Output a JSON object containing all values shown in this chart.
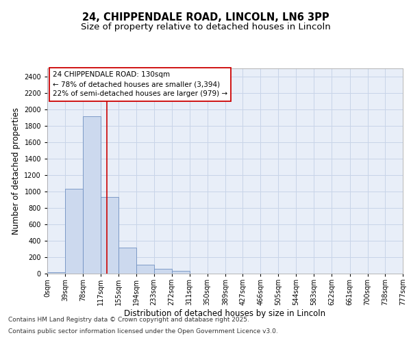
{
  "title_line1": "24, CHIPPENDALE ROAD, LINCOLN, LN6 3PP",
  "title_line2": "Size of property relative to detached houses in Lincoln",
  "xlabel": "Distribution of detached houses by size in Lincoln",
  "ylabel": "Number of detached properties",
  "bar_edges": [
    0,
    39,
    78,
    117,
    155,
    194,
    233,
    272,
    311,
    350,
    389,
    427,
    466,
    505,
    544,
    583,
    622,
    661,
    700,
    738,
    777
  ],
  "bar_labels": [
    "0sqm",
    "39sqm",
    "78sqm",
    "117sqm",
    "155sqm",
    "194sqm",
    "233sqm",
    "272sqm",
    "311sqm",
    "350sqm",
    "389sqm",
    "427sqm",
    "466sqm",
    "505sqm",
    "544sqm",
    "583sqm",
    "622sqm",
    "661sqm",
    "700sqm",
    "738sqm",
    "777sqm"
  ],
  "bar_values": [
    20,
    1030,
    1920,
    930,
    315,
    105,
    55,
    30,
    0,
    0,
    0,
    0,
    0,
    0,
    0,
    0,
    0,
    0,
    0,
    0
  ],
  "bar_color": "#ccd9ee",
  "bar_edge_color": "#7090c0",
  "grid_color": "#c8d4e8",
  "bg_color": "#e8eef8",
  "property_line_x": 130,
  "property_line_color": "#cc0000",
  "ylim": [
    0,
    2500
  ],
  "yticks": [
    0,
    200,
    400,
    600,
    800,
    1000,
    1200,
    1400,
    1600,
    1800,
    2000,
    2200,
    2400
  ],
  "annotation_title": "24 CHIPPENDALE ROAD: 130sqm",
  "annotation_line1": "← 78% of detached houses are smaller (3,394)",
  "annotation_line2": "22% of semi-detached houses are larger (979) →",
  "annotation_box_color": "#ffffff",
  "annotation_box_edge": "#cc0000",
  "footer_line1": "Contains HM Land Registry data © Crown copyright and database right 2025.",
  "footer_line2": "Contains public sector information licensed under the Open Government Licence v3.0.",
  "title_fontsize": 10.5,
  "subtitle_fontsize": 9.5,
  "axis_label_fontsize": 8.5,
  "tick_fontsize": 7,
  "annotation_fontsize": 7.5,
  "footer_fontsize": 6.5
}
